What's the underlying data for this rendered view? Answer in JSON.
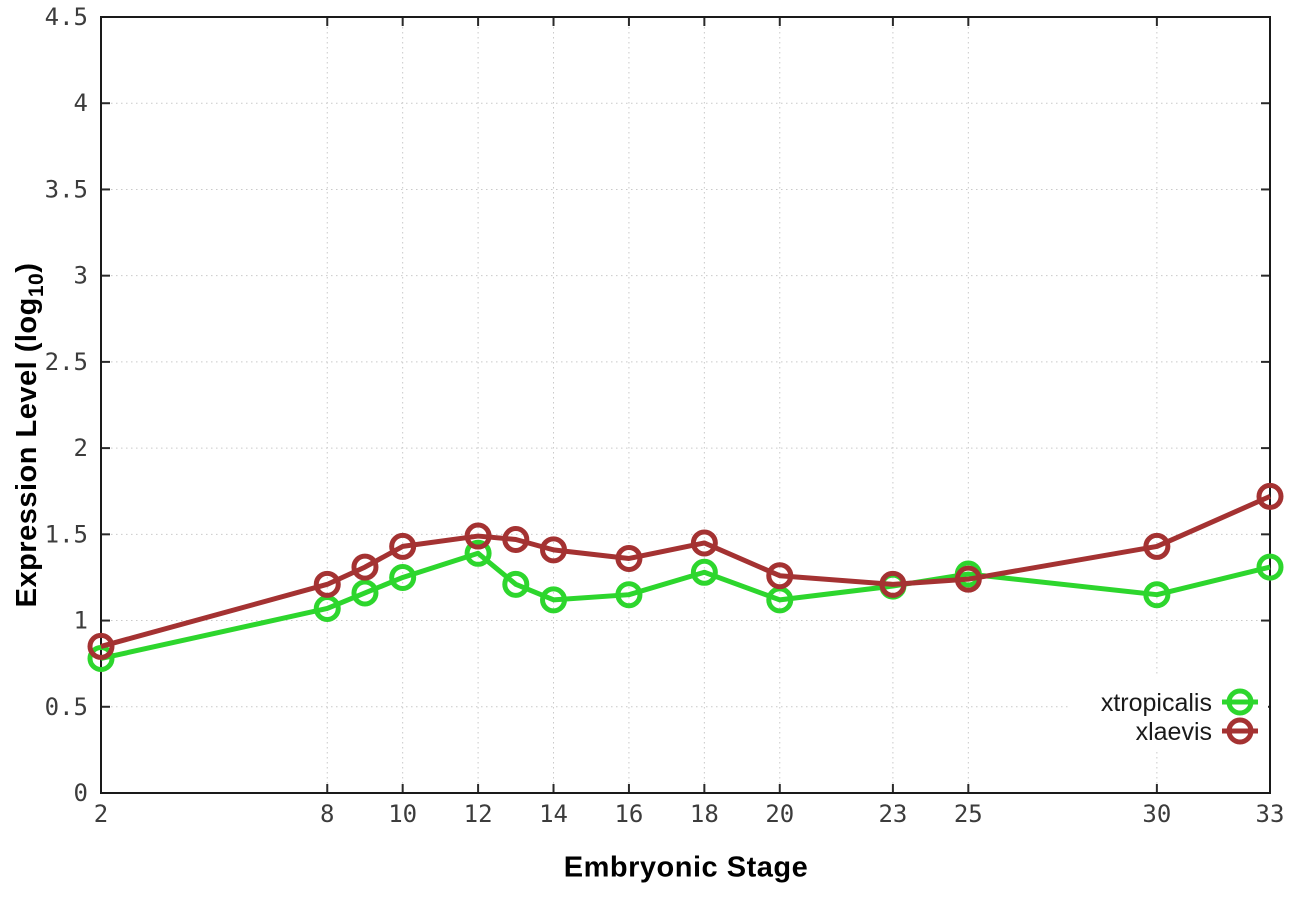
{
  "chart_data": {
    "type": "line",
    "title": "",
    "xlabel": "Embryonic Stage",
    "ylabel": {
      "prefix": "Expression Level (log",
      "sub": "10",
      "suffix": ")"
    },
    "xlim": [
      2,
      33
    ],
    "ylim": [
      0,
      4.5
    ],
    "grid": true,
    "legend_position": "bottom-right",
    "x": [
      2,
      8,
      9,
      10,
      12,
      13,
      14,
      16,
      18,
      20,
      23,
      25,
      30,
      33
    ],
    "xticks": [
      2,
      8,
      10,
      12,
      14,
      16,
      18,
      20,
      23,
      25,
      30,
      33
    ],
    "xtick_labels": [
      "2",
      "8",
      "10",
      "12",
      "14",
      "16",
      "18",
      "20",
      "23",
      "25",
      "30",
      "33"
    ],
    "yticks": [
      0,
      0.5,
      1,
      1.5,
      2,
      2.5,
      3,
      3.5,
      4,
      4.5
    ],
    "ytick_labels": [
      "0",
      "0.5",
      "1",
      "1.5",
      "2",
      "2.5",
      "3",
      "3.5",
      "4",
      "4.5"
    ],
    "series": [
      {
        "name": "xtropicalis",
        "color": "#2dd62d",
        "values": [
          0.78,
          1.07,
          1.16,
          1.25,
          1.39,
          1.21,
          1.12,
          1.15,
          1.28,
          1.12,
          1.2,
          1.27,
          1.15,
          1.31
        ]
      },
      {
        "name": "xlaevis",
        "color": "#a43232",
        "values": [
          0.85,
          1.21,
          1.31,
          1.43,
          1.49,
          1.47,
          1.41,
          1.36,
          1.45,
          1.26,
          1.21,
          1.24,
          1.43,
          1.72
        ]
      }
    ]
  },
  "style": {
    "grid_color": "#c9c9c9",
    "border_color": "#1a1a1a",
    "tick_color": "#2a2a2a",
    "tick_text_color": "#3c3c3c",
    "line_width": 5,
    "marker_radius": 11,
    "marker_stroke": 5
  }
}
